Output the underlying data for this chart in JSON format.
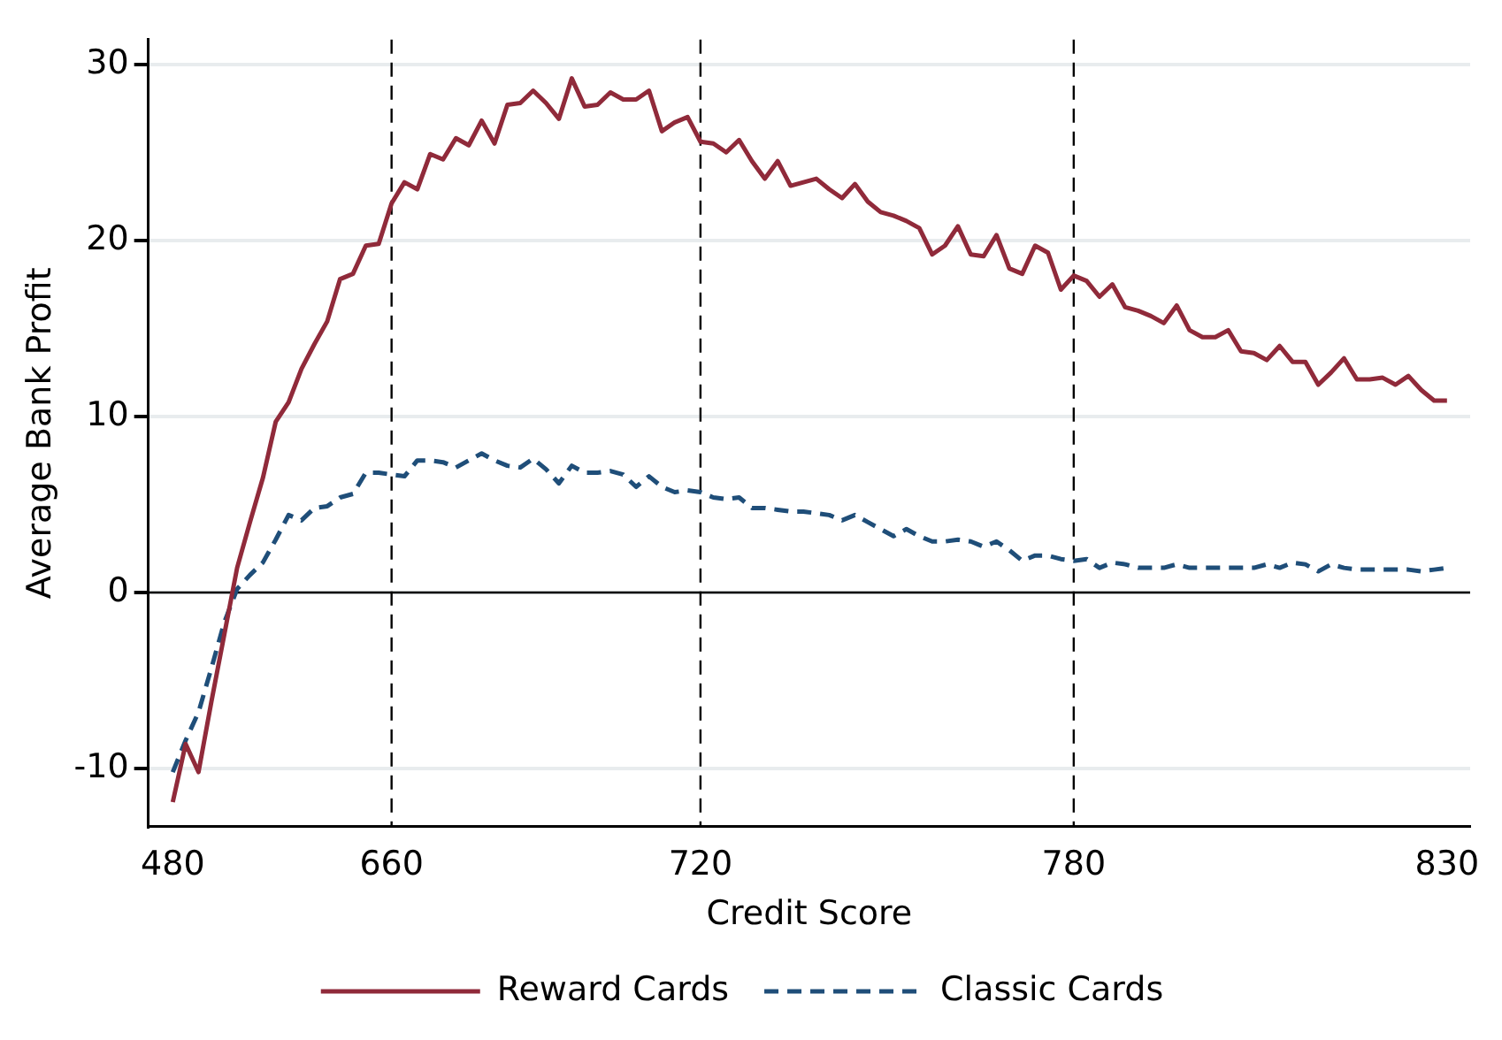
{
  "chart_data": {
    "type": "line",
    "xlabel": "Credit Score",
    "ylabel": "Average Bank Profit",
    "categories": [
      "480",
      null,
      null,
      null,
      null,
      null,
      null,
      null,
      null,
      null,
      null,
      null,
      null,
      null,
      null,
      null,
      null,
      "660",
      null,
      null,
      null,
      null,
      null,
      null,
      null,
      null,
      null,
      null,
      null,
      null,
      null,
      null,
      null,
      null,
      null,
      null,
      null,
      null,
      null,
      null,
      null,
      "720",
      null,
      null,
      null,
      null,
      null,
      null,
      null,
      null,
      null,
      null,
      null,
      null,
      null,
      null,
      null,
      null,
      null,
      null,
      null,
      null,
      null,
      null,
      null,
      null,
      null,
      null,
      null,
      null,
      "780",
      null,
      null,
      null,
      null,
      null,
      null,
      null,
      null,
      null,
      null,
      null,
      null,
      null,
      null,
      null,
      null,
      null,
      null,
      null,
      null,
      null,
      null,
      null,
      null,
      null,
      null,
      null,
      null,
      "830"
    ],
    "series": [
      {
        "name": "Reward Cards",
        "color": "#902a3a",
        "line_style": "solid",
        "values": [
          -11.9,
          -8.6,
          -10.2,
          -6.2,
          -2.4,
          1.4,
          4.0,
          6.5,
          9.7,
          10.8,
          12.7,
          14.1,
          15.4,
          17.8,
          18.1,
          19.7,
          19.8,
          22.1,
          23.3,
          22.9,
          24.9,
          24.6,
          25.8,
          25.4,
          26.8,
          25.5,
          27.7,
          27.8,
          28.5,
          27.8,
          26.9,
          29.2,
          27.6,
          27.7,
          28.4,
          28.0,
          28.0,
          28.5,
          26.2,
          26.7,
          27.0,
          25.6,
          25.5,
          25.0,
          25.7,
          24.5,
          23.5,
          24.5,
          23.1,
          23.3,
          23.5,
          22.9,
          22.4,
          23.2,
          22.2,
          21.6,
          21.4,
          21.1,
          20.7,
          19.2,
          19.7,
          20.8,
          19.2,
          19.1,
          20.3,
          18.4,
          18.1,
          19.7,
          19.3,
          17.2,
          18.0,
          17.7,
          16.8,
          17.5,
          16.2,
          16.0,
          15.7,
          15.3,
          16.3,
          14.9,
          14.5,
          14.5,
          14.9,
          13.7,
          13.6,
          13.2,
          14.0,
          13.1,
          13.1,
          11.8,
          12.5,
          13.3,
          12.1,
          12.1,
          12.2,
          11.8,
          12.3,
          11.5,
          10.9,
          10.9
        ]
      },
      {
        "name": "Classic Cards",
        "color": "#1f4e79",
        "line_style": "dashed",
        "values": [
          -10.2,
          -8.4,
          -6.8,
          -4.3,
          -1.7,
          0.2,
          1.0,
          1.7,
          3.0,
          4.4,
          4.1,
          4.8,
          4.9,
          5.4,
          5.6,
          6.8,
          6.8,
          6.7,
          6.6,
          7.5,
          7.5,
          7.4,
          7.1,
          7.5,
          7.9,
          7.5,
          7.2,
          7.1,
          7.6,
          7.0,
          6.2,
          7.2,
          6.8,
          6.8,
          6.9,
          6.7,
          6.0,
          6.6,
          6.0,
          5.7,
          5.8,
          5.7,
          5.4,
          5.3,
          5.4,
          4.8,
          4.8,
          4.7,
          4.6,
          4.6,
          4.5,
          4.4,
          4.1,
          4.4,
          4.0,
          3.6,
          3.2,
          3.6,
          3.2,
          2.9,
          2.9,
          3.0,
          2.9,
          2.6,
          2.9,
          2.4,
          1.8,
          2.1,
          2.1,
          1.9,
          1.8,
          1.9,
          1.4,
          1.7,
          1.6,
          1.4,
          1.4,
          1.4,
          1.6,
          1.4,
          1.4,
          1.4,
          1.4,
          1.4,
          1.4,
          1.6,
          1.4,
          1.7,
          1.6,
          1.2,
          1.6,
          1.4,
          1.3,
          1.3,
          1.3,
          1.3,
          1.3,
          1.2,
          1.3,
          1.4
        ]
      }
    ],
    "ylim": [
      -13.3,
      31.4
    ],
    "yticks": [
      -10,
      0,
      10,
      20,
      30
    ],
    "grid": "y",
    "legend": "bottom",
    "ref_lines": [
      {
        "axis": "y",
        "value": 0,
        "color": "#000000",
        "line_style": "solid"
      },
      {
        "axis": "x",
        "value": "660",
        "color": "#000000",
        "line_style": "dashed"
      },
      {
        "axis": "x",
        "value": "720",
        "color": "#000000",
        "line_style": "dashed"
      },
      {
        "axis": "x",
        "value": "780",
        "color": "#000000",
        "line_style": "dashed"
      }
    ]
  }
}
